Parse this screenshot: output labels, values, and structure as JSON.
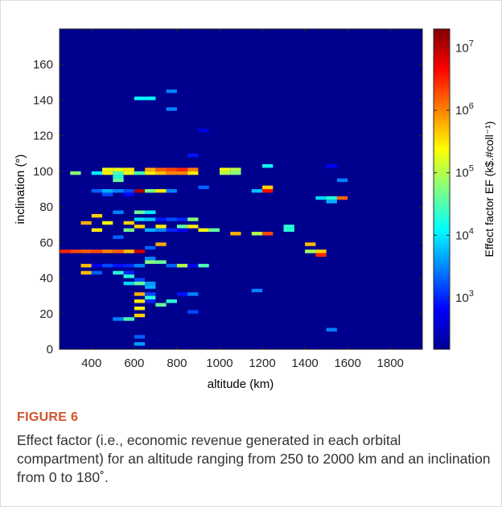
{
  "figure": {
    "label": "FIGURE 6",
    "caption": "Effect factor (i.e., economic revenue generated in each orbital compartment) for an altitude ranging from 250 to 2000 km and an inclination from 0 to 180˚."
  },
  "chart_data": {
    "type": "heatmap",
    "xlabel": "altitude (km)",
    "ylabel": "inclination (°)",
    "xlim": [
      250,
      1950
    ],
    "ylim": [
      0,
      180
    ],
    "xticks": [
      "400",
      "600",
      "800",
      "1000",
      "1200",
      "1400",
      "1600",
      "1800"
    ],
    "yticks": [
      "0",
      "20",
      "40",
      "60",
      "80",
      "100",
      "120",
      "140",
      "160"
    ],
    "cell_size": {
      "altitude_km": 50,
      "inclination_deg": 2
    },
    "colorbar": {
      "label": "Effect factor EF (k$.#coll⁻¹)",
      "scale": "log",
      "range": [
        150,
        20000000
      ],
      "ticks": [
        {
          "base": "10",
          "exp": "3",
          "value": 1000
        },
        {
          "base": "10",
          "exp": "4",
          "value": 10000
        },
        {
          "base": "10",
          "exp": "5",
          "value": 100000
        },
        {
          "base": "10",
          "exp": "6",
          "value": 1000000
        },
        {
          "base": "10",
          "exp": "7",
          "value": 10000000
        }
      ],
      "colormap": "jet"
    },
    "background_value": 150,
    "cells": [
      {
        "alt": 600,
        "inc": 140,
        "val": 12000
      },
      {
        "alt": 650,
        "inc": 140,
        "val": 12000
      },
      {
        "alt": 750,
        "inc": 144,
        "val": 3000
      },
      {
        "alt": 750,
        "inc": 134,
        "val": 3000
      },
      {
        "alt": 900,
        "inc": 122,
        "val": 500
      },
      {
        "alt": 850,
        "inc": 108,
        "val": 800
      },
      {
        "alt": 1200,
        "inc": 102,
        "val": 15000
      },
      {
        "alt": 1500,
        "inc": 102,
        "val": 600
      },
      {
        "alt": 300,
        "inc": 98,
        "val": 60000
      },
      {
        "alt": 400,
        "inc": 98,
        "val": 10000
      },
      {
        "alt": 450,
        "inc": 98,
        "val": 300000
      },
      {
        "alt": 450,
        "inc": 100,
        "val": 200000
      },
      {
        "alt": 500,
        "inc": 98,
        "val": 30000
      },
      {
        "alt": 500,
        "inc": 100,
        "val": 200000
      },
      {
        "alt": 550,
        "inc": 98,
        "val": 200000
      },
      {
        "alt": 550,
        "inc": 100,
        "val": 300000
      },
      {
        "alt": 600,
        "inc": 98,
        "val": 30000
      },
      {
        "alt": 650,
        "inc": 98,
        "val": 300000
      },
      {
        "alt": 650,
        "inc": 100,
        "val": 600000
      },
      {
        "alt": 700,
        "inc": 98,
        "val": 500000
      },
      {
        "alt": 700,
        "inc": 100,
        "val": 1500000
      },
      {
        "alt": 750,
        "inc": 98,
        "val": 1000000
      },
      {
        "alt": 750,
        "inc": 100,
        "val": 2000000
      },
      {
        "alt": 800,
        "inc": 98,
        "val": 1000000
      },
      {
        "alt": 800,
        "inc": 100,
        "val": 3000000
      },
      {
        "alt": 850,
        "inc": 98,
        "val": 300000
      },
      {
        "alt": 850,
        "inc": 100,
        "val": 1000000
      },
      {
        "alt": 1000,
        "inc": 100,
        "val": 200000
      },
      {
        "alt": 1000,
        "inc": 98,
        "val": 100000
      },
      {
        "alt": 1050,
        "inc": 98,
        "val": 60000
      },
      {
        "alt": 1050,
        "inc": 100,
        "val": 100000
      },
      {
        "alt": 1550,
        "inc": 94,
        "val": 3000
      },
      {
        "alt": 500,
        "inc": 96,
        "val": 20000
      },
      {
        "alt": 400,
        "inc": 88,
        "val": 2000
      },
      {
        "alt": 450,
        "inc": 88,
        "val": 5000
      },
      {
        "alt": 500,
        "inc": 88,
        "val": 3000
      },
      {
        "alt": 550,
        "inc": 88,
        "val": 1500
      },
      {
        "alt": 600,
        "inc": 88,
        "val": 12000000
      },
      {
        "alt": 650,
        "inc": 88,
        "val": 50000
      },
      {
        "alt": 700,
        "inc": 88,
        "val": 300000
      },
      {
        "alt": 750,
        "inc": 88,
        "val": 3000
      },
      {
        "alt": 900,
        "inc": 90,
        "val": 2000
      },
      {
        "alt": 1150,
        "inc": 88,
        "val": 6000
      },
      {
        "alt": 1200,
        "inc": 88,
        "val": 4000000
      },
      {
        "alt": 1200,
        "inc": 90,
        "val": 400000
      },
      {
        "alt": 1450,
        "inc": 84,
        "val": 8000
      },
      {
        "alt": 1500,
        "inc": 84,
        "val": 20000
      },
      {
        "alt": 1550,
        "inc": 84,
        "val": 1500000
      },
      {
        "alt": 1500,
        "inc": 82,
        "val": 5000
      },
      {
        "alt": 500,
        "inc": 94,
        "val": 40000
      },
      {
        "alt": 450,
        "inc": 86,
        "val": 1500
      },
      {
        "alt": 550,
        "inc": 86,
        "val": 700
      },
      {
        "alt": 400,
        "inc": 74,
        "val": 400000
      },
      {
        "alt": 500,
        "inc": 76,
        "val": 3000
      },
      {
        "alt": 600,
        "inc": 76,
        "val": 40000
      },
      {
        "alt": 650,
        "inc": 76,
        "val": 10000
      },
      {
        "alt": 350,
        "inc": 70,
        "val": 600000
      },
      {
        "alt": 450,
        "inc": 70,
        "val": 200000
      },
      {
        "alt": 550,
        "inc": 70,
        "val": 400000
      },
      {
        "alt": 600,
        "inc": 72,
        "val": 8000
      },
      {
        "alt": 650,
        "inc": 72,
        "val": 6000
      },
      {
        "alt": 700,
        "inc": 72,
        "val": 800
      },
      {
        "alt": 750,
        "inc": 72,
        "val": 1500
      },
      {
        "alt": 800,
        "inc": 72,
        "val": 1000
      },
      {
        "alt": 850,
        "inc": 72,
        "val": 60000
      },
      {
        "alt": 600,
        "inc": 68,
        "val": 400000
      },
      {
        "alt": 700,
        "inc": 68,
        "val": 300000
      },
      {
        "alt": 800,
        "inc": 68,
        "val": 40000
      },
      {
        "alt": 850,
        "inc": 68,
        "val": 300000
      },
      {
        "alt": 900,
        "inc": 66,
        "val": 200000
      },
      {
        "alt": 400,
        "inc": 66,
        "val": 300000
      },
      {
        "alt": 550,
        "inc": 66,
        "val": 50000
      },
      {
        "alt": 650,
        "inc": 66,
        "val": 5000
      },
      {
        "alt": 700,
        "inc": 66,
        "val": 3000
      },
      {
        "alt": 750,
        "inc": 66,
        "val": 1000
      },
      {
        "alt": 800,
        "inc": 66,
        "val": 600
      },
      {
        "alt": 950,
        "inc": 66,
        "val": 40000
      },
      {
        "alt": 1050,
        "inc": 64,
        "val": 600000
      },
      {
        "alt": 1150,
        "inc": 64,
        "val": 100000
      },
      {
        "alt": 1200,
        "inc": 64,
        "val": 2000000
      },
      {
        "alt": 1300,
        "inc": 66,
        "val": 20000
      },
      {
        "alt": 1300,
        "inc": 68,
        "val": 20000
      },
      {
        "alt": 500,
        "inc": 62,
        "val": 2000
      },
      {
        "alt": 700,
        "inc": 58,
        "val": 600000
      },
      {
        "alt": 1400,
        "inc": 58,
        "val": 500000
      },
      {
        "alt": 1400,
        "inc": 54,
        "val": 80000
      },
      {
        "alt": 1450,
        "inc": 54,
        "val": 400000
      },
      {
        "alt": 1450,
        "inc": 52,
        "val": 3000000
      },
      {
        "alt": 650,
        "inc": 56,
        "val": 2000
      },
      {
        "alt": 250,
        "inc": 54,
        "val": 3000000
      },
      {
        "alt": 300,
        "inc": 54,
        "val": 2000000
      },
      {
        "alt": 350,
        "inc": 54,
        "val": 1500000
      },
      {
        "alt": 400,
        "inc": 54,
        "val": 2000000
      },
      {
        "alt": 450,
        "inc": 54,
        "val": 1000000
      },
      {
        "alt": 500,
        "inc": 54,
        "val": 1500000
      },
      {
        "alt": 550,
        "inc": 54,
        "val": 500000
      },
      {
        "alt": 600,
        "inc": 54,
        "val": 8000000
      },
      {
        "alt": 350,
        "inc": 46,
        "val": 500000
      },
      {
        "alt": 400,
        "inc": 46,
        "val": 600
      },
      {
        "alt": 450,
        "inc": 46,
        "val": 1500
      },
      {
        "alt": 500,
        "inc": 46,
        "val": 800
      },
      {
        "alt": 550,
        "inc": 46,
        "val": 1000
      },
      {
        "alt": 600,
        "inc": 46,
        "val": 3000
      },
      {
        "alt": 650,
        "inc": 50,
        "val": 3000
      },
      {
        "alt": 650,
        "inc": 48,
        "val": 60000
      },
      {
        "alt": 700,
        "inc": 48,
        "val": 40000
      },
      {
        "alt": 750,
        "inc": 46,
        "val": 2000
      },
      {
        "alt": 800,
        "inc": 46,
        "val": 100000
      },
      {
        "alt": 850,
        "inc": 46,
        "val": 600
      },
      {
        "alt": 900,
        "inc": 46,
        "val": 30000
      },
      {
        "alt": 350,
        "inc": 42,
        "val": 500000
      },
      {
        "alt": 400,
        "inc": 42,
        "val": 2000
      },
      {
        "alt": 500,
        "inc": 42,
        "val": 20000
      },
      {
        "alt": 550,
        "inc": 42,
        "val": 1000
      },
      {
        "alt": 550,
        "inc": 40,
        "val": 20000
      },
      {
        "alt": 600,
        "inc": 38,
        "val": 1500
      },
      {
        "alt": 650,
        "inc": 36,
        "val": 4000
      },
      {
        "alt": 550,
        "inc": 36,
        "val": 8000
      },
      {
        "alt": 600,
        "inc": 36,
        "val": 40000
      },
      {
        "alt": 650,
        "inc": 34,
        "val": 5000
      },
      {
        "alt": 1150,
        "inc": 32,
        "val": 3000
      },
      {
        "alt": 600,
        "inc": 30,
        "val": 600000
      },
      {
        "alt": 650,
        "inc": 30,
        "val": 1500
      },
      {
        "alt": 650,
        "inc": 28,
        "val": 20000
      },
      {
        "alt": 800,
        "inc": 30,
        "val": 800
      },
      {
        "alt": 850,
        "inc": 30,
        "val": 3000
      },
      {
        "alt": 600,
        "inc": 26,
        "val": 300000
      },
      {
        "alt": 650,
        "inc": 26,
        "val": 1000
      },
      {
        "alt": 700,
        "inc": 24,
        "val": 40000
      },
      {
        "alt": 750,
        "inc": 26,
        "val": 20000
      },
      {
        "alt": 600,
        "inc": 22,
        "val": 300000
      },
      {
        "alt": 850,
        "inc": 20,
        "val": 1500
      },
      {
        "alt": 600,
        "inc": 18,
        "val": 400000
      },
      {
        "alt": 500,
        "inc": 16,
        "val": 3000
      },
      {
        "alt": 550,
        "inc": 16,
        "val": 30000
      },
      {
        "alt": 1500,
        "inc": 10,
        "val": 3000
      },
      {
        "alt": 600,
        "inc": 6,
        "val": 2000
      },
      {
        "alt": 600,
        "inc": 2,
        "val": 4000
      }
    ]
  }
}
